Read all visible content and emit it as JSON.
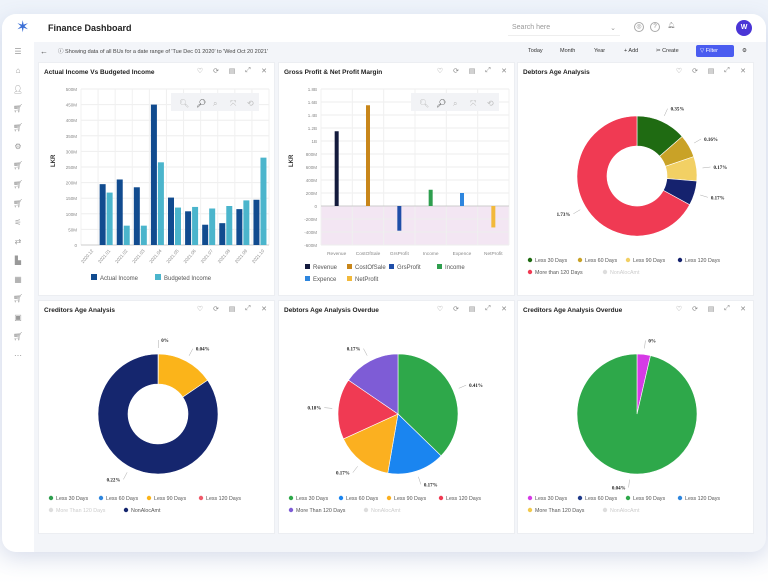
{
  "app": {
    "title": "Finance Dashboard",
    "search_placeholder": "Search here",
    "avatar": "W"
  },
  "subbar": {
    "info": "Showing data of all BUs for a date range of 'Tue Dec 01 2020' to 'Wed Oct 20 2021'",
    "today": "Today",
    "month": "Month",
    "year": "Year",
    "add": "+ Add",
    "create": "Create",
    "filter": "Filter"
  },
  "sidebar": {
    "icons": [
      "menu-icon",
      "home-icon",
      "user-icon",
      "cart-icon",
      "cart-icon",
      "gear-icon",
      "cart-icon",
      "cart-icon",
      "cart-icon",
      "sliders-icon",
      "transfer-icon",
      "factory-icon",
      "table-icon",
      "cart-icon",
      "briefcase-icon",
      "cart-icon",
      "more-icon"
    ]
  },
  "colors": {
    "accent": "#4a5cf0",
    "dark_blue": "#114b8f",
    "light_blue": "#4bb5cc"
  },
  "panels": [
    {
      "title": "Actual Income Vs Budgeted Income"
    },
    {
      "title": "Gross Profit & Net Profit Margin"
    },
    {
      "title": "Debtors Age Analysis"
    },
    {
      "title": "Creditors Age Analysis"
    },
    {
      "title": "Debtors Age Analysis Overdue"
    },
    {
      "title": "Creditors Age Analysis Overdue"
    }
  ],
  "chart_data": [
    {
      "type": "bar",
      "title": "Actual Income Vs Budgeted Income",
      "ylabel": "LKR",
      "ylim": [
        0,
        500
      ],
      "yunit": "M",
      "yticks": [
        "0",
        "50M",
        "100M",
        "150M",
        "200M",
        "250M",
        "300M",
        "350M",
        "400M",
        "450M",
        "500M"
      ],
      "categories": [
        "2020.12",
        "2021.01",
        "2021.02",
        "2021.03",
        "2021.04",
        "2021.05",
        "2021.06",
        "2021.07",
        "2021.08",
        "2021.09",
        "2021.10"
      ],
      "series": [
        {
          "name": "Actual Income",
          "color": "#114b8f",
          "values": [
            0,
            195,
            210,
            185,
            450,
            152,
            108,
            65,
            70,
            115,
            145
          ]
        },
        {
          "name": "Budgeted Income",
          "color": "#4bb5cc",
          "values": [
            0,
            168,
            62,
            62,
            265,
            120,
            122,
            117,
            125,
            143,
            280
          ]
        }
      ],
      "legend": "bottom",
      "grid": true
    },
    {
      "type": "bar",
      "title": "Gross Profit & Net Profit Margin",
      "ylabel": "LKR",
      "ylim": [
        -600,
        1800
      ],
      "yunit": "M",
      "yticks": [
        "-600M",
        "-400M",
        "-200M",
        "0",
        "200M",
        "400M",
        "600M",
        "800M",
        "1B",
        "1.2B",
        "1.4B",
        "1.6B",
        "1.8B"
      ],
      "categories": [
        "Revenue",
        "CostOfSale",
        "GrsProfit",
        "Income",
        "Expence",
        "NetProfit"
      ],
      "values": [
        1150,
        1550,
        -380,
        250,
        200,
        -330
      ],
      "colors": [
        "#141b3d",
        "#c8861a",
        "#1f4ea8",
        "#2e9e4e",
        "#2e86de",
        "#f2b93b"
      ],
      "legend": "bottom",
      "grid": true
    },
    {
      "type": "pie",
      "donut": true,
      "title": "Debtors Age Analysis",
      "slices": [
        {
          "name": "Less 30 Days",
          "value": 0.35,
          "label": "0.35%",
          "color": "#1f6b12"
        },
        {
          "name": "Less 60 Days",
          "value": 0.16,
          "label": "0.16%",
          "color": "#c9a227"
        },
        {
          "name": "Less 90 Days",
          "value": 0.17,
          "label": "0.17%",
          "color": "#f2d064"
        },
        {
          "name": "Less 120 Days",
          "value": 0.17,
          "label": "0.17%",
          "color": "#15226e"
        },
        {
          "name": "More than 120 Days",
          "value": 1.73,
          "label": "1.73%",
          "color": "#f03a53"
        },
        {
          "name": "NonAlocAmt",
          "value": 0,
          "label": "",
          "color": "#dddddd",
          "hidden": true
        }
      ]
    },
    {
      "type": "pie",
      "donut": true,
      "title": "Creditors Age Analysis",
      "slices": [
        {
          "name": "Less 30 Days",
          "value": 0.0003,
          "label": "0%",
          "color": "#2e9e4e"
        },
        {
          "name": "Less 60 Days",
          "value": 0,
          "label": "",
          "color": "#2e86de"
        },
        {
          "name": "Less 90 Days",
          "value": 0.04,
          "label": "0.04%",
          "color": "#fbb41a"
        },
        {
          "name": "Less 120 Days",
          "value": 0,
          "label": "",
          "color": "#f05a6a"
        },
        {
          "name": "More Than 120 Days",
          "value": 0,
          "label": "",
          "color": "#dddddd",
          "hidden": true
        },
        {
          "name": "NonAlocAmt",
          "value": 0.22,
          "label": "0.22%",
          "color": "#15266e"
        }
      ]
    },
    {
      "type": "pie",
      "donut": false,
      "title": "Debtors Age Analysis Overdue",
      "slices": [
        {
          "name": "Less 30 Days",
          "value": 0.41,
          "label": "0.41%",
          "color": "#2ea84a"
        },
        {
          "name": "Less 60 Days",
          "value": 0.17,
          "label": "0.17%",
          "color": "#1a85f0"
        },
        {
          "name": "Less 90 Days",
          "value": 0.17,
          "label": "0.17%",
          "color": "#fbb020"
        },
        {
          "name": "Less 120 Days",
          "value": 0.18,
          "label": "0.18%",
          "color": "#f03a53"
        },
        {
          "name": "More Than 120 Days",
          "value": 0.17,
          "label": "0.17%",
          "color": "#7e5cd6"
        },
        {
          "name": "NonAlocAmt",
          "value": 0,
          "label": "",
          "color": "#dddddd",
          "hidden": true
        }
      ]
    },
    {
      "type": "pie",
      "donut": false,
      "title": "Creditors Age Analysis Overdue",
      "slices": [
        {
          "name": "Less 30 Days",
          "value": 0.0015,
          "label": "0%",
          "color": "#d63ae6"
        },
        {
          "name": "Less 60 Days",
          "value": 0,
          "label": "",
          "color": "#1f3a8a"
        },
        {
          "name": "Less 90 Days",
          "value": 0.04,
          "label": "0.04%",
          "color": "#2ea84a"
        },
        {
          "name": "Less 120 Days",
          "value": 0,
          "label": "",
          "color": "#2e86de"
        },
        {
          "name": "More Than 120 Days",
          "value": 0,
          "label": "",
          "color": "#f2c94c"
        },
        {
          "name": "NonAlocAmt",
          "value": 0,
          "label": "",
          "color": "#dddddd",
          "hidden": true
        }
      ]
    }
  ]
}
